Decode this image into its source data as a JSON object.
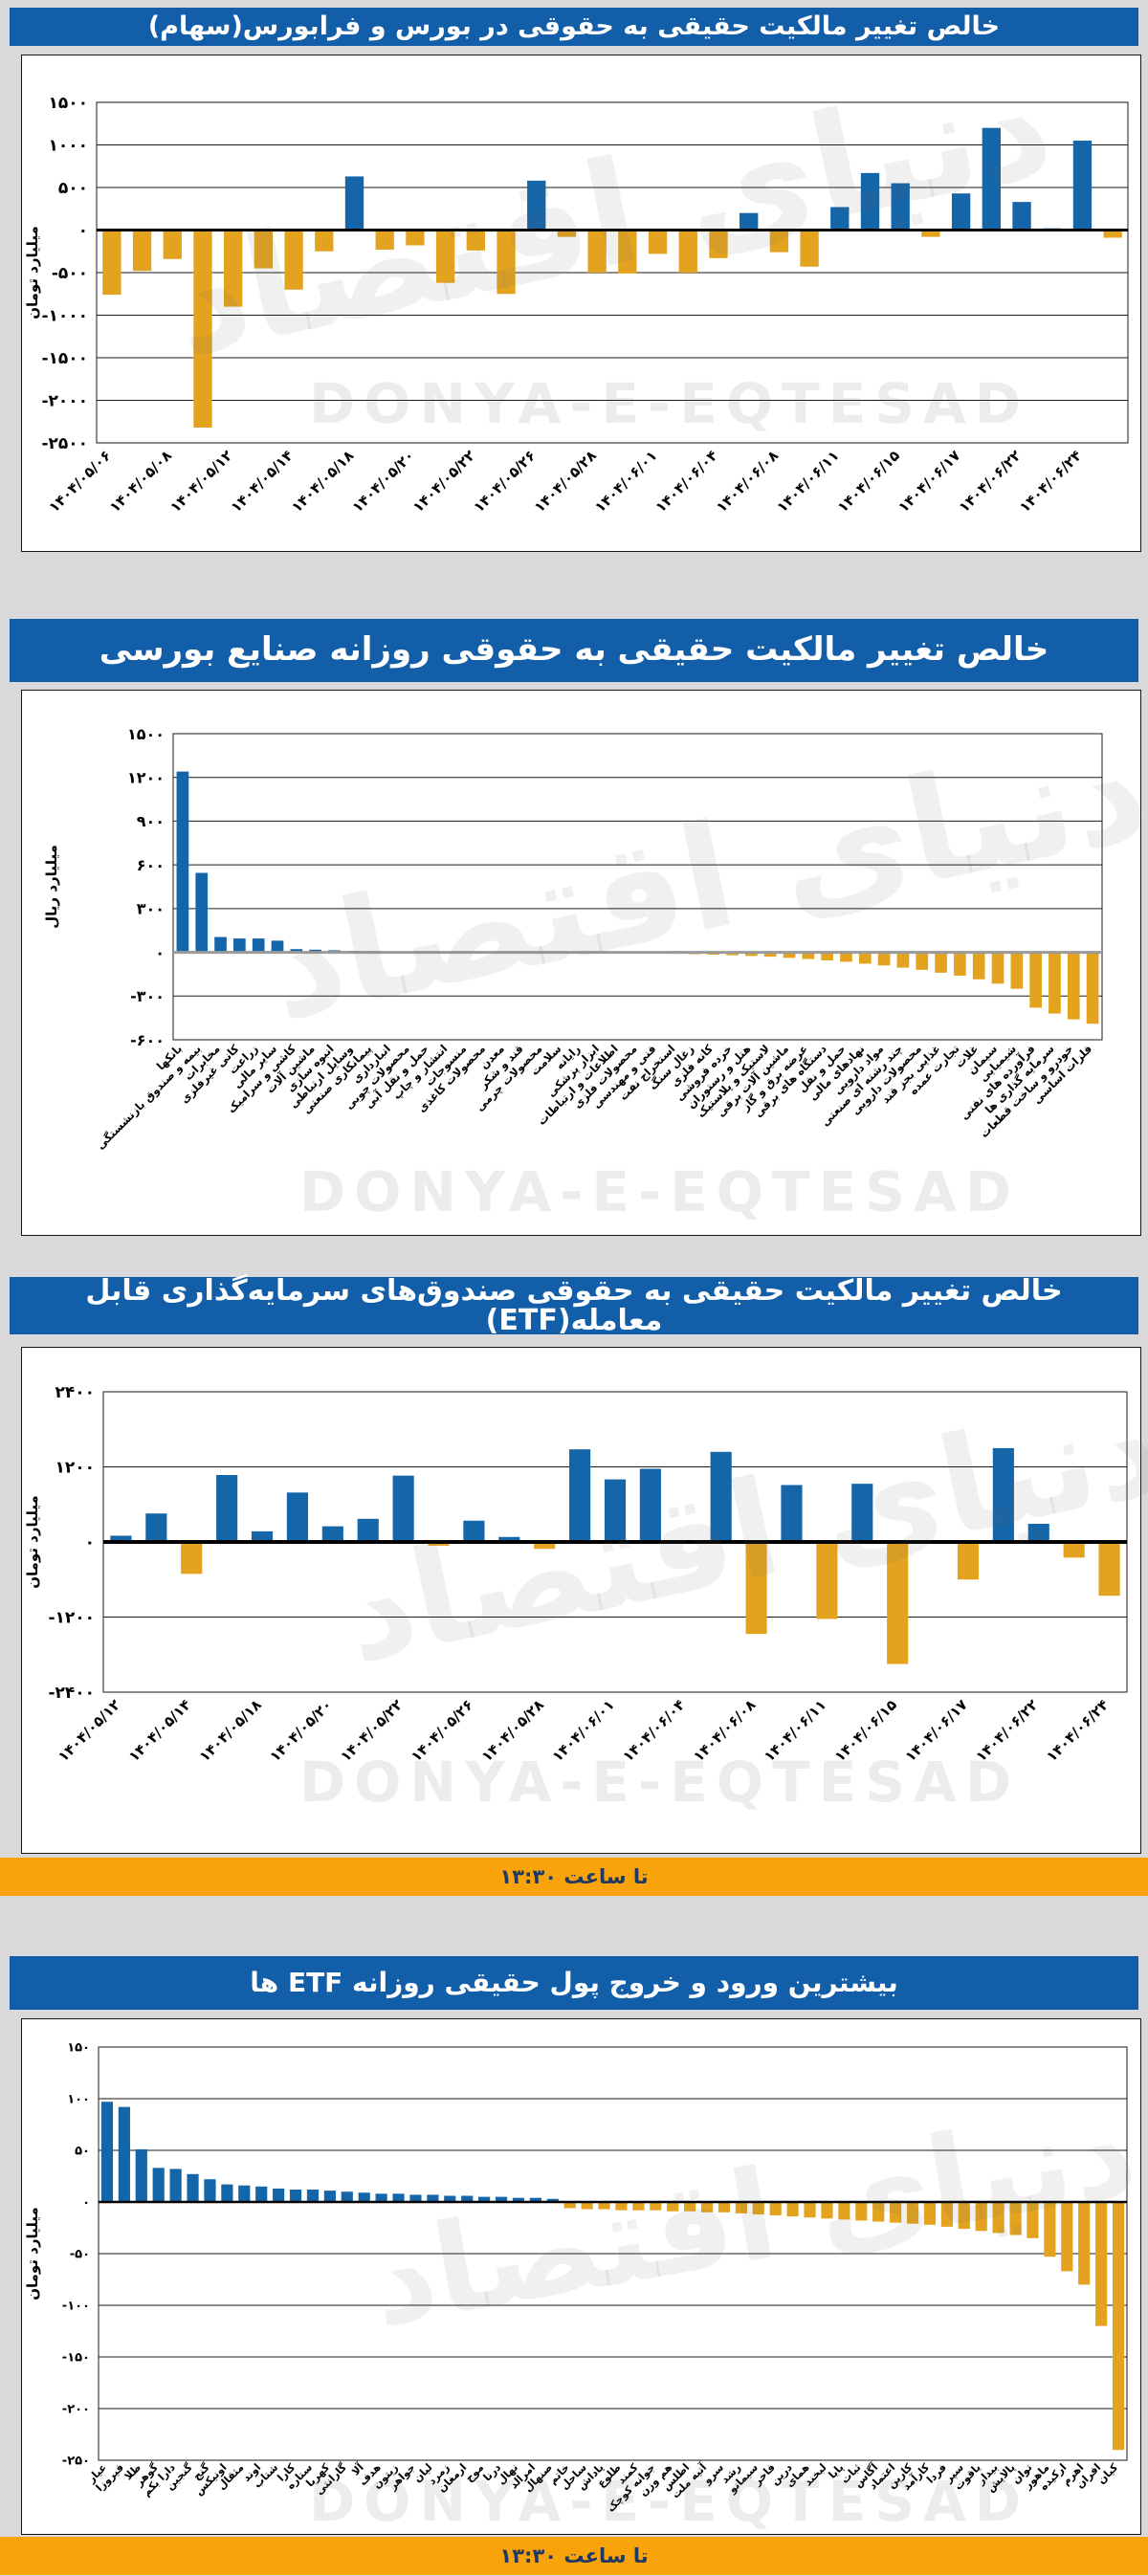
{
  "watermark": {
    "latin": "DONYA-E-EQTESAD",
    "farsi": "دنیای اقتصاد"
  },
  "colors": {
    "positive": "#1565A9",
    "negative": "#E3A31F",
    "title_bg": "#135EA9",
    "footer_bg": "#F8A309",
    "footer_text": "#1F3864",
    "grid": "#1A1A1A"
  },
  "chart_data": [
    {
      "type": "bar",
      "title": "خالص تغییر مالکیت حقیقی به حقوقی در بورس و فرابورس(سهام)",
      "ylabel": "میلیارد تومان",
      "ylim": [
        -2500,
        1500
      ],
      "ytick_step": 500,
      "label_every": 2,
      "categories": [
        "۱۴۰۴/۰۵/۰۶",
        "۱۴۰۴/۰۵/۰۸",
        "۱۴۰۴/۰۵/۱۲",
        "۱۴۰۴/۰۵/۱۴",
        "۱۴۰۴/۰۵/۱۸",
        "۱۴۰۴/۰۵/۲۰",
        "۱۴۰۴/۰۵/۲۲",
        "۱۴۰۴/۰۵/۲۶",
        "۱۴۰۴/۰۵/۲۸",
        "۱۴۰۴/۰۶/۰۱",
        "۱۴۰۴/۰۶/۰۴",
        "۱۴۰۴/۰۶/۰۸",
        "۱۴۰۴/۰۶/۱۱",
        "۱۴۰۴/۰۶/۱۵",
        "۱۴۰۴/۰۶/۱۷",
        "۱۴۰۴/۰۶/۲۲",
        "۱۴۰۴/۰۶/۲۴"
      ],
      "values": [
        -760,
        -480,
        -340,
        -2320,
        -900,
        -450,
        -700,
        -250,
        630,
        -230,
        -180,
        -620,
        -240,
        -750,
        580,
        -80,
        -500,
        -510,
        -280,
        -500,
        -330,
        200,
        -260,
        -430,
        270,
        670,
        550,
        -80,
        430,
        1200,
        330,
        20,
        1050,
        -90
      ]
    },
    {
      "type": "bar",
      "title": "خالص تغییر مالکیت حقیقی به حقوقی روزانه صنایع بورسی",
      "ylabel": "میلیارد ریال",
      "ylim": [
        -600,
        1500
      ],
      "ytick_step": 300,
      "label_every": 1,
      "categories": [
        "بانکها",
        "بیمه و صندوق بازنشستگی",
        "مخابرات",
        "کانی غیرفلزی",
        "زراعت",
        "سایر مالی",
        "کاشی و سرامیک",
        "ماشین آلات",
        "انبوه سازی",
        "وسایل ارتباطی",
        "پیمانکاری صنعتی",
        "انبارداری",
        "محصولات چوبی",
        "حمل و نقل آبی",
        "انتشار و چاپ",
        "منسوجات",
        "محصولات کاغذی",
        "معدن",
        "قند و شکر",
        "محصولات چرمی",
        "سلامت",
        "رایانه",
        "ابزار پزشکی",
        "اطلاعات و ارتباطات",
        "محصولات فلزی",
        "فنی و مهندسی",
        "استخراج نفت",
        "زغال سنگ",
        "کانه فلزی",
        "خرده فروشی",
        "هتل و رستوران",
        "لاستیک و پلاستیک",
        "ماشین آلات برقی",
        "عرضه برق و گاز",
        "دستگاه های برقی",
        "حمل و نقل",
        "نهادهای مالی",
        "مواد دارویی",
        "چند رشته ای صنعتی",
        "محصولات دارویی",
        "غذایی بجز قند",
        "تجارت عمده",
        "غلات",
        "سیمان",
        "شیمیایی",
        "فرآورده های نفتی",
        "سرمایه گذاری ها",
        "خودرو و ساخت قطعات",
        "فلزات اساسی"
      ],
      "values": [
        1240,
        545,
        105,
        95,
        95,
        80,
        22,
        18,
        14,
        10,
        8,
        6,
        5,
        4,
        3,
        2,
        2,
        1,
        1,
        0,
        -1,
        -2,
        -3,
        -4,
        -6,
        -8,
        -10,
        -13,
        -16,
        -20,
        -25,
        -30,
        -38,
        -46,
        -55,
        -65,
        -78,
        -90,
        -105,
        -120,
        -140,
        -160,
        -185,
        -215,
        -250,
        -380,
        -420,
        -460,
        -490
      ]
    },
    {
      "type": "bar",
      "title": "خالص تغییر مالکیت حقیقی به حقوقی صندوق‌های سرمایه‌گذاری قابل معامله(ETF)",
      "ylabel": "میلیارد تومان",
      "ylim": [
        -2400,
        2400
      ],
      "ytick_step": 1200,
      "label_every": 2,
      "footer": "تا ساعت ۱۳:۳۰",
      "categories": [
        "۱۴۰۴/۰۵/۱۲",
        "۱۴۰۴/۰۵/۱۴",
        "۱۴۰۴/۰۵/۱۸",
        "۱۴۰۴/۰۵/۲۰",
        "۱۴۰۴/۰۵/۲۲",
        "۱۴۰۴/۰۵/۲۶",
        "۱۴۰۴/۰۵/۲۸",
        "۱۴۰۴/۰۶/۰۱",
        "۱۴۰۴/۰۶/۰۴",
        "۱۴۰۴/۰۶/۰۸",
        "۱۴۰۴/۰۶/۱۱",
        "۱۴۰۴/۰۶/۱۵",
        "۱۴۰۴/۰۶/۱۷",
        "۱۴۰۴/۰۶/۲۲",
        "۱۴۰۴/۰۶/۲۴"
      ],
      "values": [
        100,
        455,
        -510,
        1070,
        170,
        790,
        250,
        370,
        1060,
        -60,
        340,
        80,
        -110,
        1480,
        1000,
        1170,
        30,
        1440,
        -1470,
        910,
        -1230,
        930,
        -1950,
        30,
        -600,
        1500,
        290,
        -250,
        -860
      ]
    },
    {
      "type": "bar",
      "title": "بیشترین ورود و خروج پول حقیقی روزانه ETF ها",
      "ylabel": "میلیارد تومان",
      "ylim": [
        -250,
        150
      ],
      "ytick_step": 50,
      "label_every": 1,
      "footer": "تا ساعت ۱۳:۳۰",
      "categories": [
        "عیار",
        "فیروزا",
        "طلا",
        "گوهر",
        "دارا یکم",
        "گنجین",
        "گنج",
        "اونیکس",
        "مثقال",
        "اوند",
        "شتاب",
        "کارا",
        "ستاره",
        "کهربا",
        "گارانتی",
        "آلا",
        "هدف",
        "زیتون",
        "جواهر",
        "لیان",
        "زمرد",
        "ارمغان",
        "موج",
        "درنا",
        "نهال",
        "امرالد",
        "صنهال",
        "خاتم",
        "ساحل",
        "پاداش",
        "طلوع",
        "کمند",
        "جوانه کوچک",
        "هم وزن",
        "اطلس",
        "آتیه ملت",
        "سرو",
        "رشد",
        "سیمانو",
        "فاخر",
        "درین",
        "همای",
        "لبخند",
        "پایا",
        "ثبات",
        "آگاس",
        "اعتماد",
        "کارین",
        "کارآمد",
        "فردا",
        "سپر",
        "یاقوت",
        "بیدار",
        "پالایش",
        "توان",
        "ماهور",
        "ارکیده",
        "اهرم",
        "افران",
        "کیان"
      ],
      "values": [
        97,
        92,
        51,
        33,
        32,
        27,
        22,
        17,
        16,
        15,
        13,
        12,
        12,
        11,
        10,
        9,
        8,
        8,
        7,
        7,
        6,
        6,
        5,
        5,
        4,
        4,
        3,
        -6,
        -7,
        -7,
        -8,
        -8,
        -8,
        -9,
        -9,
        -10,
        -10,
        -11,
        -12,
        -13,
        -14,
        -15,
        -16,
        -17,
        -18,
        -19,
        -20,
        -21,
        -22,
        -24,
        -26,
        -28,
        -30,
        -32,
        -35,
        -53,
        -67,
        -80,
        -120,
        -240
      ]
    }
  ]
}
